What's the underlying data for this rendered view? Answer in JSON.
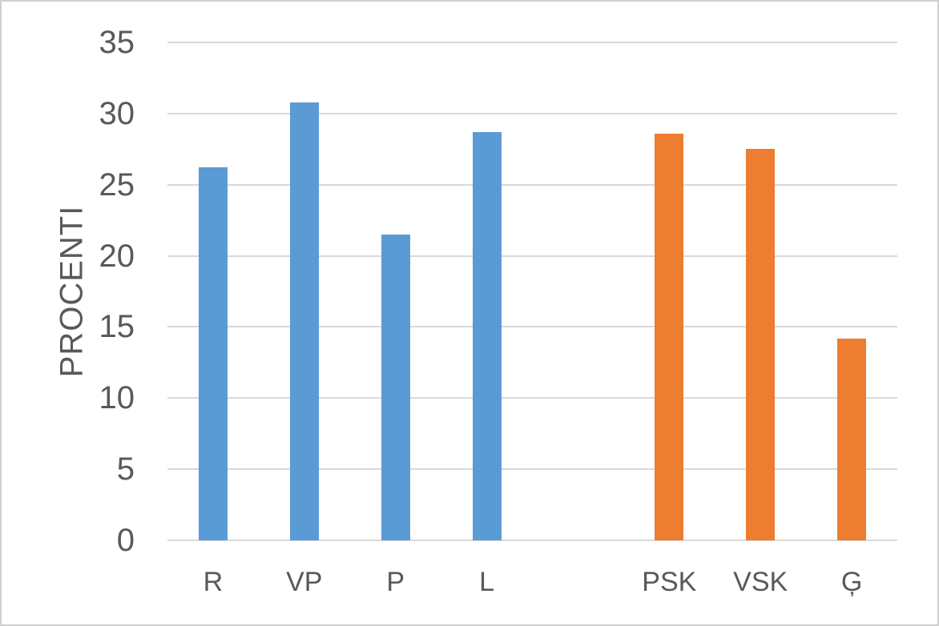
{
  "chart_data": {
    "type": "bar",
    "title": "",
    "xlabel": "",
    "ylabel": "PROCENTI",
    "ylim": [
      0,
      35
    ],
    "ytick_step": 5,
    "yticks": [
      0,
      5,
      10,
      15,
      20,
      25,
      30,
      35
    ],
    "grid": true,
    "legend": "none",
    "categories": [
      "R",
      "VP",
      "P",
      "L",
      "",
      "PSK",
      "VSK",
      "Ģ"
    ],
    "points": [
      {
        "label": "R",
        "value": 26.2,
        "color": "#5B9BD5"
      },
      {
        "label": "VP",
        "value": 30.8,
        "color": "#5B9BD5"
      },
      {
        "label": "P",
        "value": 21.5,
        "color": "#5B9BD5"
      },
      {
        "label": "L",
        "value": 28.7,
        "color": "#5B9BD5"
      },
      {
        "label": "",
        "value": null,
        "color": null
      },
      {
        "label": "PSK",
        "value": 28.6,
        "color": "#ED7D31"
      },
      {
        "label": "VSK",
        "value": 27.5,
        "color": "#ED7D31"
      },
      {
        "label": "Ģ",
        "value": 14.2,
        "color": "#ED7D31"
      }
    ],
    "colors": {
      "blue_series": "#5B9BD5",
      "orange_series": "#ED7D31",
      "gridline": "#D9D9D9",
      "axis_line": "#D9D9D9",
      "axis_text": "#595959",
      "background": "#FFFFFF",
      "frame_border": "#CFCFCF"
    }
  }
}
